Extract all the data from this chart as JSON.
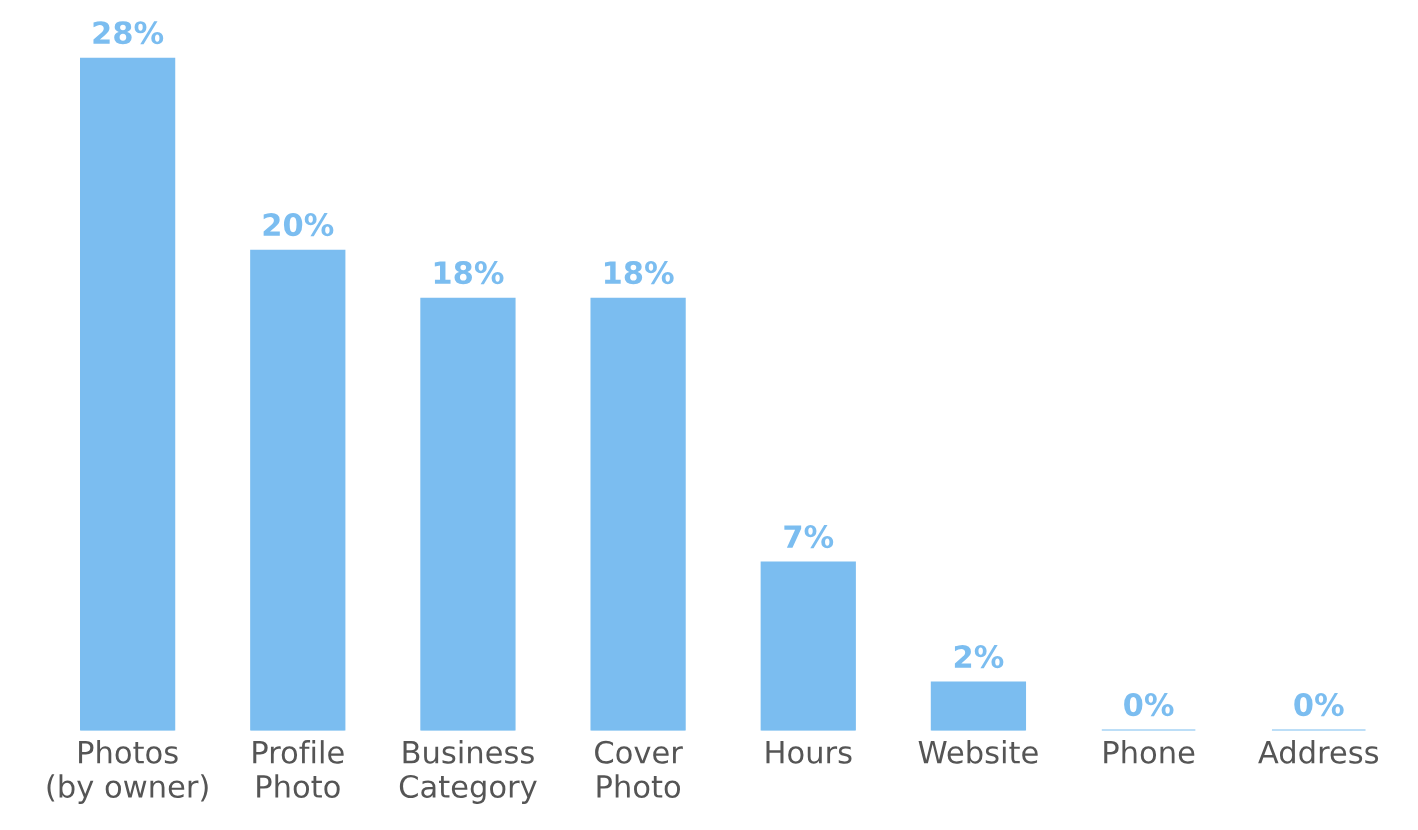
{
  "chart_data": {
    "type": "bar",
    "categories": [
      "Photos\n(by owner)",
      "Profile\nPhoto",
      "Business\nCategory",
      "Cover\nPhoto",
      "Hours",
      "Website",
      "Phone",
      "Address"
    ],
    "values": [
      28,
      20,
      18,
      18,
      7,
      2,
      0,
      0
    ],
    "value_labels": [
      "28%",
      "20%",
      "18%",
      "18%",
      "7%",
      "2%",
      "0%",
      "0%"
    ],
    "color": "#7bbdf0",
    "tick_labels": "x",
    "grid": false,
    "legend": false
  }
}
